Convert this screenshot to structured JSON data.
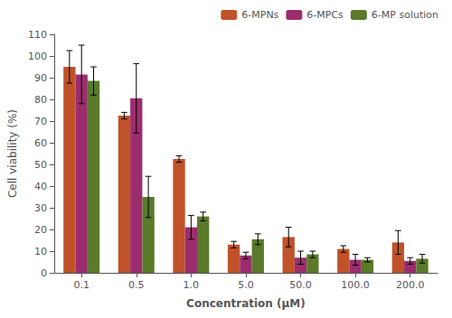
{
  "chart_data": {
    "type": "bar",
    "xlabel": "Concentration (μM)",
    "ylabel": "Cell viability (%)",
    "categories": [
      "0.1",
      "0.5",
      "1.0",
      "5.0",
      "50.0",
      "100.0",
      "200.0"
    ],
    "series": [
      {
        "name": "6-MPNs",
        "color": "#c0522a",
        "values": [
          95.0,
          72.5,
          52.5,
          13.0,
          16.5,
          11.0,
          14.0
        ],
        "errors": [
          7.5,
          1.5,
          1.5,
          1.5,
          4.5,
          1.5,
          5.5
        ]
      },
      {
        "name": "6-MPCs",
        "color": "#9b2d6e",
        "values": [
          91.5,
          80.5,
          21.0,
          8.0,
          7.0,
          6.0,
          5.5
        ],
        "errors": [
          13.5,
          16.0,
          5.5,
          1.5,
          3.0,
          2.5,
          1.5
        ]
      },
      {
        "name": "6-MP solution",
        "color": "#5a7a2a",
        "values": [
          88.5,
          35.0,
          26.0,
          15.5,
          8.5,
          6.0,
          6.5
        ],
        "errors": [
          6.5,
          9.5,
          2.0,
          2.5,
          1.5,
          1.0,
          2.0
        ]
      }
    ],
    "ylim": [
      0,
      110
    ],
    "yticks": [
      0,
      10,
      20,
      30,
      40,
      50,
      60,
      70,
      80,
      90,
      100,
      110
    ],
    "grid": false,
    "legend": "upper right"
  }
}
